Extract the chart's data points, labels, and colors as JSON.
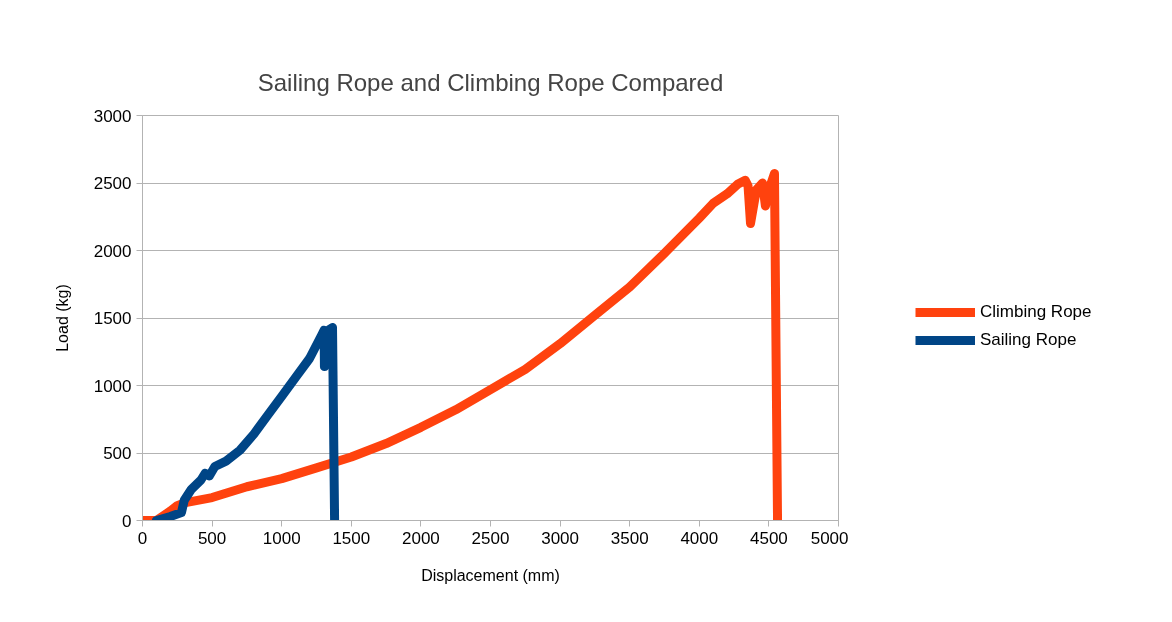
{
  "chart_data": {
    "type": "line",
    "title": "Sailing Rope and Climbing Rope Compared",
    "xlabel": "Displacement (mm)",
    "ylabel": "Load (kg)",
    "xlim": [
      0,
      5000
    ],
    "xticks": [
      0,
      500,
      1000,
      1500,
      2000,
      2500,
      3000,
      3500,
      4000,
      4500,
      5000
    ],
    "ylim": [
      0,
      3000
    ],
    "yticks": [
      0,
      500,
      1000,
      1500,
      2000,
      2500,
      3000
    ],
    "grid": "y",
    "legend": "right",
    "marker": "none",
    "line_style": "solid",
    "series": [
      {
        "name": "Climbing Rope",
        "color": "#ff420e",
        "x": [
          0,
          100,
          200,
          250,
          300,
          500,
          750,
          1000,
          1250,
          1500,
          1750,
          2000,
          2250,
          2500,
          2750,
          3000,
          3250,
          3500,
          3750,
          4000,
          4100,
          4200,
          4275,
          4330,
          4350,
          4368,
          4410,
          4454,
          4475,
          4510,
          4540,
          4562
        ],
        "values": [
          0,
          0,
          70,
          110,
          130,
          170,
          250,
          310,
          390,
          470,
          570,
          690,
          820,
          970,
          1120,
          1310,
          1520,
          1730,
          1980,
          2240,
          2350,
          2420,
          2490,
          2520,
          2480,
          2200,
          2450,
          2500,
          2330,
          2480,
          2570,
          0
        ]
      },
      {
        "name": "Sailing Rope",
        "color": "#004586",
        "x": [
          100,
          200,
          280,
          300,
          350,
          420,
          450,
          480,
          520,
          600,
          700,
          800,
          900,
          1000,
          1100,
          1200,
          1290,
          1305,
          1307,
          1320,
          1365,
          1380
        ],
        "values": [
          0,
          30,
          60,
          150,
          230,
          300,
          350,
          330,
          400,
          440,
          520,
          640,
          780,
          920,
          1060,
          1200,
          1380,
          1410,
          1140,
          1400,
          1430,
          0
        ]
      }
    ]
  }
}
